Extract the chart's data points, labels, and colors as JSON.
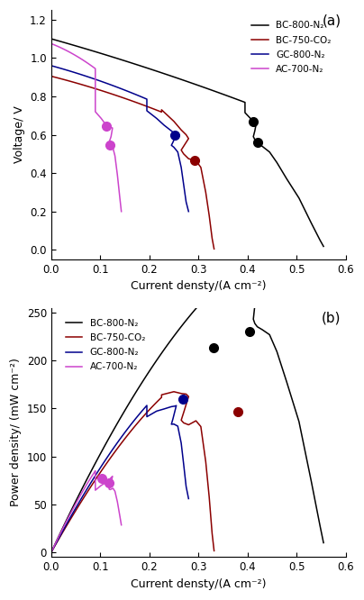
{
  "colors": {
    "black": "#000000",
    "red": "#8b0000",
    "blue": "#00008b",
    "magenta": "#cc44cc"
  },
  "legend_labels": [
    "BC-800-N₂",
    "BC-750-CO₂",
    "GC-800-N₂",
    "AC-700-N₂"
  ],
  "panel_labels": [
    "(a)",
    "(b)"
  ],
  "xlabel": "Current densty/(A cm⁻²)",
  "ylabel_a": "Voltage/ V",
  "ylabel_b": "Power density/ (mW cm⁻²)",
  "xlim": [
    0.0,
    0.6
  ],
  "ylim_a": [
    -0.05,
    1.25
  ],
  "ylim_b": [
    -5,
    255
  ],
  "xticks": [
    0.0,
    0.1,
    0.2,
    0.3,
    0.4,
    0.5,
    0.6
  ],
  "yticks_a": [
    0.0,
    0.2,
    0.4,
    0.6,
    0.8,
    1.0,
    1.2
  ],
  "yticks_b": [
    0,
    50,
    100,
    150,
    200,
    250
  ]
}
